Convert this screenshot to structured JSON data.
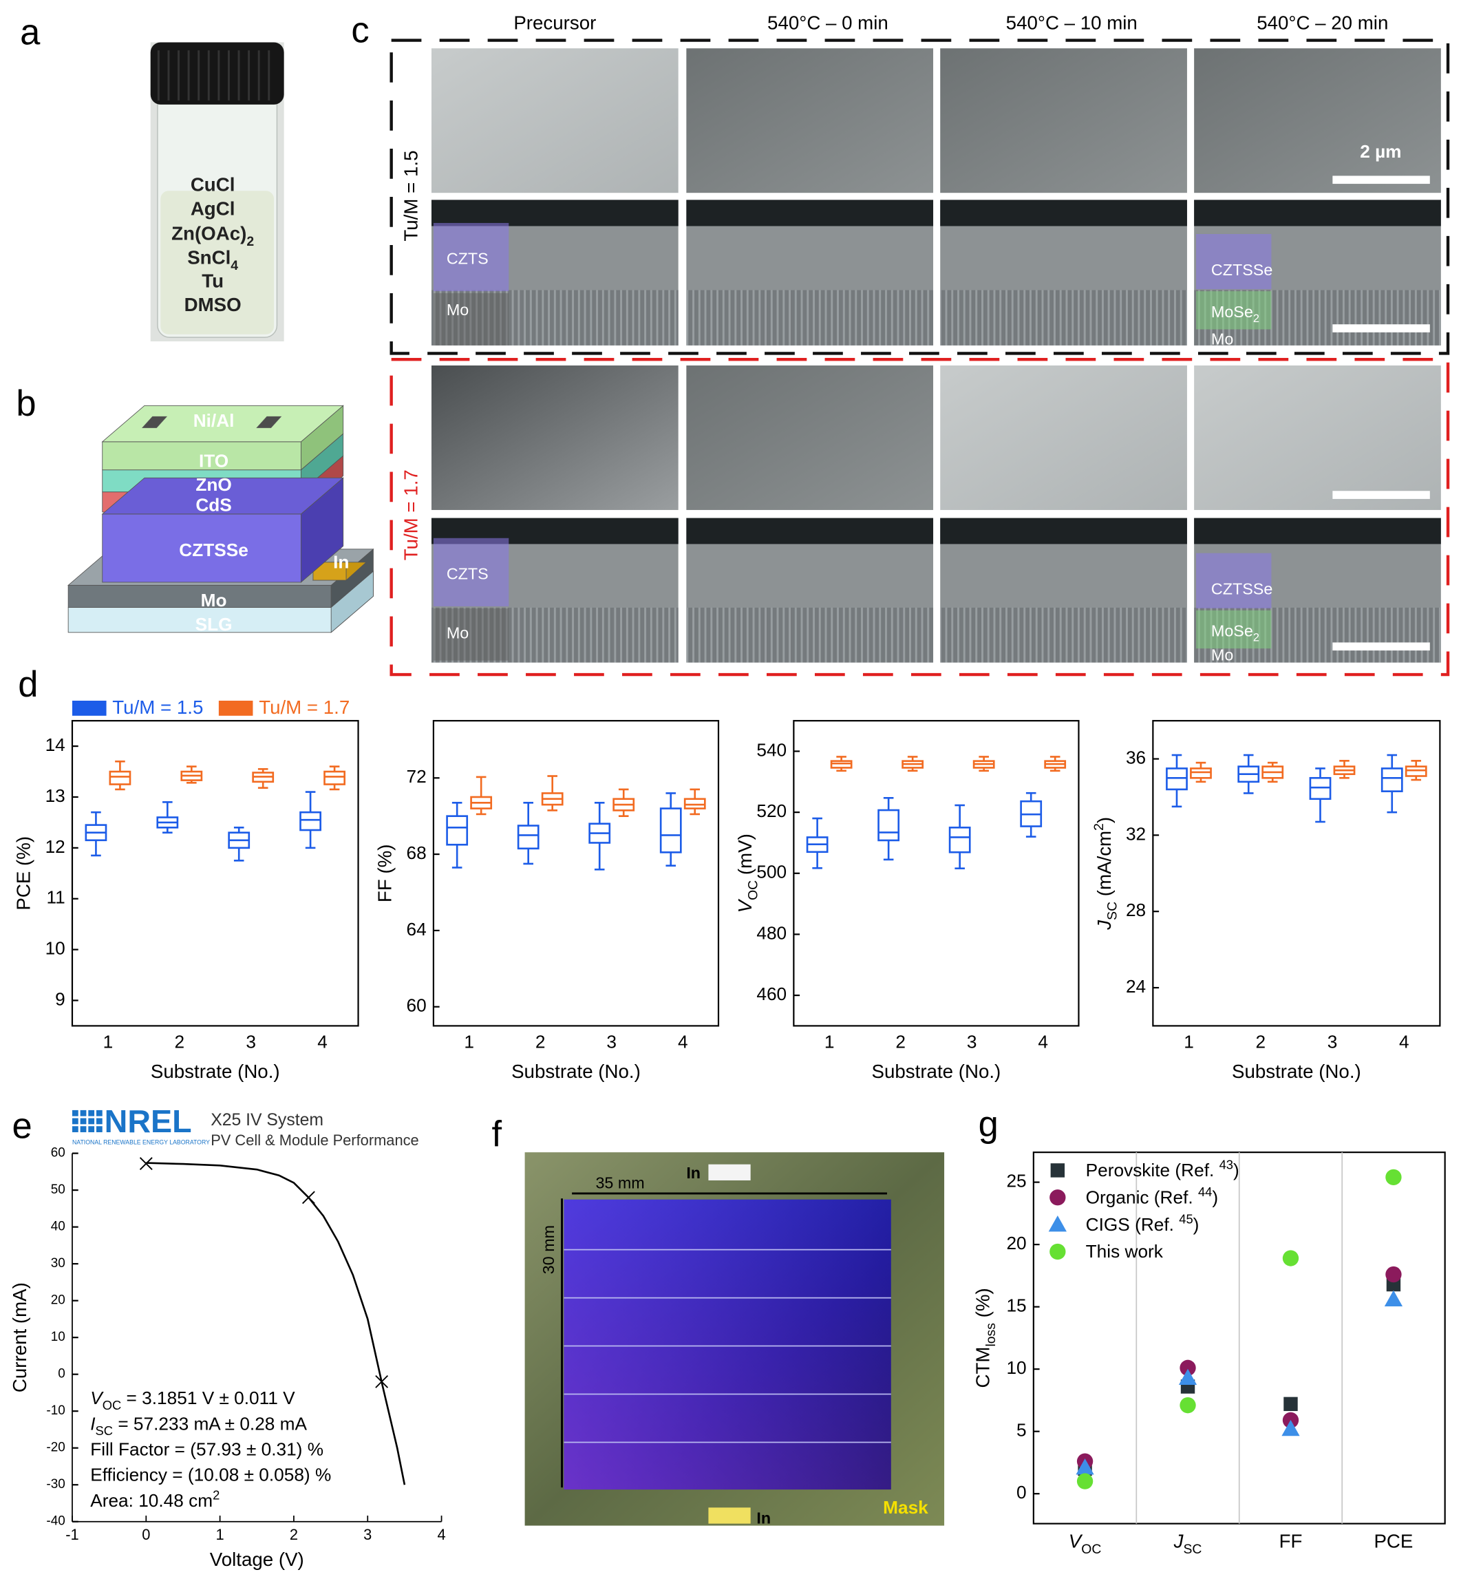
{
  "panel_labels": [
    "a",
    "b",
    "c",
    "d",
    "e",
    "f",
    "g"
  ],
  "panel_a": {
    "labels": [
      [
        {
          "text": "CuCl"
        }
      ],
      [
        {
          "text": "AgCl"
        }
      ],
      [
        {
          "text": "Zn(OAc)"
        },
        {
          "text": "2",
          "style": "sub"
        }
      ],
      [
        {
          "text": "SnCl"
        },
        {
          "text": "4",
          "style": "sub"
        }
      ],
      [
        {
          "text": "Tu"
        }
      ],
      [
        {
          "text": "DMSO"
        }
      ]
    ]
  },
  "panel_b": {
    "layers": [
      "Ni/Al",
      "ITO",
      "ZnO",
      "CdS",
      "CZTSSe",
      "In",
      "Mo",
      "SLG"
    ]
  },
  "panel_c": {
    "columns": [
      "Precursor",
      "540°C – 0 min",
      "540°C – 10 min",
      "540°C – 20 min"
    ],
    "rows": [
      "Tu/M = 1.5",
      "Tu/M = 1.7"
    ],
    "scale_bar": "2 µm",
    "cross_section_labels": [
      [
        [
          {
            "text": "CZTS"
          }
        ],
        [
          {
            "text": "Mo"
          }
        ]
      ],
      [
        [
          {
            "text": "CZTSSe"
          }
        ],
        [
          {
            "text": "MoSe"
          },
          {
            "text": "2",
            "style": "sub"
          }
        ],
        [
          {
            "text": "Mo"
          }
        ]
      ],
      [
        [
          {
            "text": "CZTS"
          }
        ],
        [
          {
            "text": "Mo"
          }
        ]
      ],
      [
        [
          {
            "text": "CZTSSe"
          }
        ],
        [
          {
            "text": "MoSe"
          },
          {
            "text": "2",
            "style": "sub"
          }
        ],
        [
          {
            "text": "Mo"
          }
        ]
      ]
    ]
  },
  "nrel_header": {
    "logo": "NREL",
    "logo_subtitle": "NATIONAL RENEWABLE ENERGY LABORATORY",
    "system": "X25 IV System",
    "subtitle": "PV Cell & Module Performance"
  },
  "panel_f": {
    "width_label": "35 mm",
    "height_label": "30 mm",
    "contacts": [
      "In",
      "In"
    ],
    "mask": "Mask"
  },
  "chart_data": [
    {
      "type": "box",
      "legend": "above",
      "xlabel": "Substrate (No.)",
      "ylabel": [
        {
          "text": "PCE (%)"
        }
      ],
      "categories": [
        "1",
        "2",
        "3",
        "4"
      ],
      "ylim": [
        8.5,
        14.5
      ],
      "yticks": [
        9,
        10,
        11,
        12,
        13,
        14
      ],
      "series": [
        {
          "name": "Tu/M = 1.5",
          "color": "#1c5ce8",
          "values": [
            {
              "min": 11.85,
              "q1": 12.15,
              "median": 12.3,
              "q3": 12.45,
              "max": 12.7
            },
            {
              "min": 12.3,
              "q1": 12.4,
              "median": 12.5,
              "q3": 12.6,
              "max": 12.9
            },
            {
              "min": 11.75,
              "q1": 12.0,
              "median": 12.15,
              "q3": 12.3,
              "max": 12.4
            },
            {
              "min": 12.0,
              "q1": 12.35,
              "median": 12.55,
              "q3": 12.7,
              "max": 13.1
            }
          ]
        },
        {
          "name": "Tu/M = 1.7",
          "color": "#f26b21",
          "values": [
            {
              "min": 13.15,
              "q1": 13.25,
              "median": 13.4,
              "q3": 13.5,
              "max": 13.7
            },
            {
              "min": 13.28,
              "q1": 13.33,
              "median": 13.42,
              "q3": 13.5,
              "max": 13.6
            },
            {
              "min": 13.18,
              "q1": 13.3,
              "median": 13.4,
              "q3": 13.48,
              "max": 13.55
            },
            {
              "min": 13.15,
              "q1": 13.25,
              "median": 13.4,
              "q3": 13.5,
              "max": 13.6
            }
          ]
        }
      ]
    },
    {
      "type": "box",
      "xlabel": "Substrate (No.)",
      "ylabel": [
        {
          "text": "FF (%)"
        }
      ],
      "categories": [
        "1",
        "2",
        "3",
        "4"
      ],
      "ylim": [
        59,
        75
      ],
      "yticks": [
        60,
        64,
        68,
        72
      ],
      "series": [
        {
          "color": "#1c5ce8",
          "values": [
            {
              "min": 67.3,
              "q1": 68.5,
              "median": 69.4,
              "q3": 70.0,
              "max": 70.7
            },
            {
              "min": 67.5,
              "q1": 68.3,
              "median": 69.0,
              "q3": 69.5,
              "max": 70.7
            },
            {
              "min": 67.2,
              "q1": 68.6,
              "median": 69.1,
              "q3": 69.6,
              "max": 70.7
            },
            {
              "min": 67.4,
              "q1": 68.1,
              "median": 69.0,
              "q3": 70.4,
              "max": 71.2
            }
          ]
        },
        {
          "color": "#f26b21",
          "values": [
            {
              "min": 70.1,
              "q1": 70.4,
              "median": 70.7,
              "q3": 71.0,
              "max": 72.05
            },
            {
              "min": 70.3,
              "q1": 70.6,
              "median": 70.9,
              "q3": 71.2,
              "max": 72.1
            },
            {
              "min": 70.0,
              "q1": 70.3,
              "median": 70.6,
              "q3": 70.9,
              "max": 71.4
            },
            {
              "min": 70.1,
              "q1": 70.4,
              "median": 70.6,
              "q3": 70.9,
              "max": 71.4
            }
          ]
        }
      ]
    },
    {
      "type": "box",
      "xlabel": "Substrate (No.)",
      "ylabel": [
        {
          "text": "V",
          "style": "italic"
        },
        {
          "text": "OC",
          "style": "sub"
        },
        {
          "text": " (mV)"
        }
      ],
      "categories": [
        "1",
        "2",
        "3",
        "4"
      ],
      "ylim": [
        450,
        550
      ],
      "yticks": [
        460,
        480,
        500,
        520,
        540
      ],
      "series": [
        {
          "color": "#1c5ce8",
          "values": [
            {
              "min": 501.7,
              "q1": 507,
              "median": 509.5,
              "q3": 511.8,
              "max": 518
            },
            {
              "min": 504.5,
              "q1": 510.8,
              "median": 513.4,
              "q3": 520.7,
              "max": 524.7
            },
            {
              "min": 501.6,
              "q1": 506.9,
              "median": 511.8,
              "q3": 515,
              "max": 522.3
            },
            {
              "min": 512,
              "q1": 515.4,
              "median": 519.3,
              "q3": 523.6,
              "max": 526.3
            }
          ]
        },
        {
          "color": "#f26b21",
          "values": [
            {
              "min": 533.6,
              "q1": 534.6,
              "median": 536,
              "q3": 536.8,
              "max": 538.2
            },
            {
              "min": 533.6,
              "q1": 534.6,
              "median": 535.8,
              "q3": 536.8,
              "max": 538.2
            },
            {
              "min": 533.6,
              "q1": 534.6,
              "median": 535.8,
              "q3": 536.8,
              "max": 538.2
            },
            {
              "min": 533.6,
              "q1": 534.6,
              "median": 535.8,
              "q3": 536.8,
              "max": 538.2
            }
          ]
        }
      ]
    },
    {
      "type": "box",
      "xlabel": "Substrate (No.)",
      "ylabel": [
        {
          "text": "J",
          "style": "italic"
        },
        {
          "text": "SC",
          "style": "sub"
        },
        {
          "text": " (mA/cm"
        },
        {
          "text": "2",
          "style": "sup"
        },
        {
          "text": ")"
        }
      ],
      "categories": [
        "1",
        "2",
        "3",
        "4"
      ],
      "ylim": [
        22,
        38
      ],
      "yticks": [
        24,
        28,
        32,
        36
      ],
      "series": [
        {
          "color": "#1c5ce8",
          "values": [
            {
              "min": 33.5,
              "q1": 34.4,
              "median": 35.0,
              "q3": 35.5,
              "max": 36.2
            },
            {
              "min": 34.2,
              "q1": 34.8,
              "median": 35.2,
              "q3": 35.6,
              "max": 36.2
            },
            {
              "min": 32.7,
              "q1": 33.9,
              "median": 34.5,
              "q3": 35.0,
              "max": 35.5
            },
            {
              "min": 33.2,
              "q1": 34.3,
              "median": 35.0,
              "q3": 35.5,
              "max": 36.2
            }
          ]
        },
        {
          "color": "#f26b21",
          "values": [
            {
              "min": 34.8,
              "q1": 35.0,
              "median": 35.3,
              "q3": 35.5,
              "max": 35.8
            },
            {
              "min": 34.8,
              "q1": 35.0,
              "median": 35.3,
              "q3": 35.6,
              "max": 35.8
            },
            {
              "min": 35.0,
              "q1": 35.2,
              "median": 35.4,
              "q3": 35.6,
              "max": 35.9
            },
            {
              "min": 34.9,
              "q1": 35.1,
              "median": 35.4,
              "q3": 35.6,
              "max": 35.9
            }
          ]
        }
      ]
    },
    {
      "type": "line",
      "xlabel": "Voltage (V)",
      "ylabel": [
        {
          "text": "Current (mA)"
        }
      ],
      "xlim": [
        -1,
        4
      ],
      "xticks": [
        -1,
        0,
        1,
        2,
        3,
        4
      ],
      "ylim": [
        -40,
        60
      ],
      "yticks": [
        -40,
        -30,
        -20,
        -10,
        0,
        10,
        20,
        30,
        40,
        50,
        60
      ],
      "series": [
        {
          "color": "#000000",
          "x": [
            0,
            0.5,
            1,
            1.5,
            1.8,
            2,
            2.2,
            2.4,
            2.6,
            2.8,
            3,
            3.2,
            3.4,
            3.5
          ],
          "values": [
            57.4,
            57.1,
            56.7,
            55.6,
            54,
            52,
            48,
            43,
            36,
            27,
            15,
            -3,
            -20,
            -30
          ]
        },
        {
          "color": "#000000",
          "marker": "x",
          "x": [
            0,
            2.2,
            3.19
          ],
          "values": [
            57.2,
            48,
            -2
          ]
        }
      ],
      "annotations": [
        [
          {
            "text": "V",
            "style": "italic"
          },
          {
            "text": "OC",
            "style": "sub"
          },
          {
            "text": " = 3.1851 V ± 0.011 V"
          }
        ],
        [
          {
            "text": "I",
            "style": "italic"
          },
          {
            "text": "SC",
            "style": "sub"
          },
          {
            "text": " = 57.233 mA ± 0.28 mA"
          }
        ],
        [
          {
            "text": "Fill Factor = (57.93 ± 0.31) %"
          }
        ],
        [
          {
            "text": "Efficiency = (10.08 ± 0.058) %"
          }
        ],
        [
          {
            "text": "Area: 10.48 cm"
          },
          {
            "text": "2",
            "style": "sup"
          }
        ]
      ]
    },
    {
      "type": "scatter",
      "legend": "top-left",
      "category_separators": true,
      "ylabel": [
        {
          "text": "CTM"
        },
        {
          "text": "loss",
          "style": "sub"
        },
        {
          "text": " (%)"
        }
      ],
      "categories": [
        [
          {
            "text": "V",
            "style": "italic"
          },
          {
            "text": "OC",
            "style": "sub"
          }
        ],
        [
          {
            "text": "J",
            "style": "italic"
          },
          {
            "text": "SC",
            "style": "sub"
          }
        ],
        [
          {
            "text": "FF"
          }
        ],
        [
          {
            "text": "PCE"
          }
        ]
      ],
      "ylim": [
        -2.4,
        27.4
      ],
      "yticks": [
        0,
        5,
        10,
        15,
        20,
        25
      ],
      "series": [
        {
          "name": [
            {
              "text": "Perovskite (Ref. "
            },
            {
              "text": "43",
              "style": "sup"
            },
            {
              "text": ")"
            }
          ],
          "color": "#263238",
          "marker": "square",
          "values": [
            2.0,
            8.6,
            7.2,
            16.8
          ]
        },
        {
          "name": [
            {
              "text": "Organic (Ref. "
            },
            {
              "text": "44",
              "style": "sup"
            },
            {
              "text": ")"
            }
          ],
          "color": "#8b1a5c",
          "marker": "circle",
          "values": [
            2.6,
            10.1,
            5.9,
            17.6
          ]
        },
        {
          "name": [
            {
              "text": "CIGS (Ref. "
            },
            {
              "text": "45",
              "style": "sup"
            },
            {
              "text": ")"
            }
          ],
          "color": "#3d8fe8",
          "marker": "triangle",
          "values": [
            2.1,
            9.3,
            5.2,
            15.6
          ]
        },
        {
          "name": [
            {
              "text": "This work"
            }
          ],
          "color": "#66e033",
          "marker": "circle",
          "values": [
            1.0,
            7.1,
            18.9,
            25.4
          ]
        }
      ]
    }
  ]
}
